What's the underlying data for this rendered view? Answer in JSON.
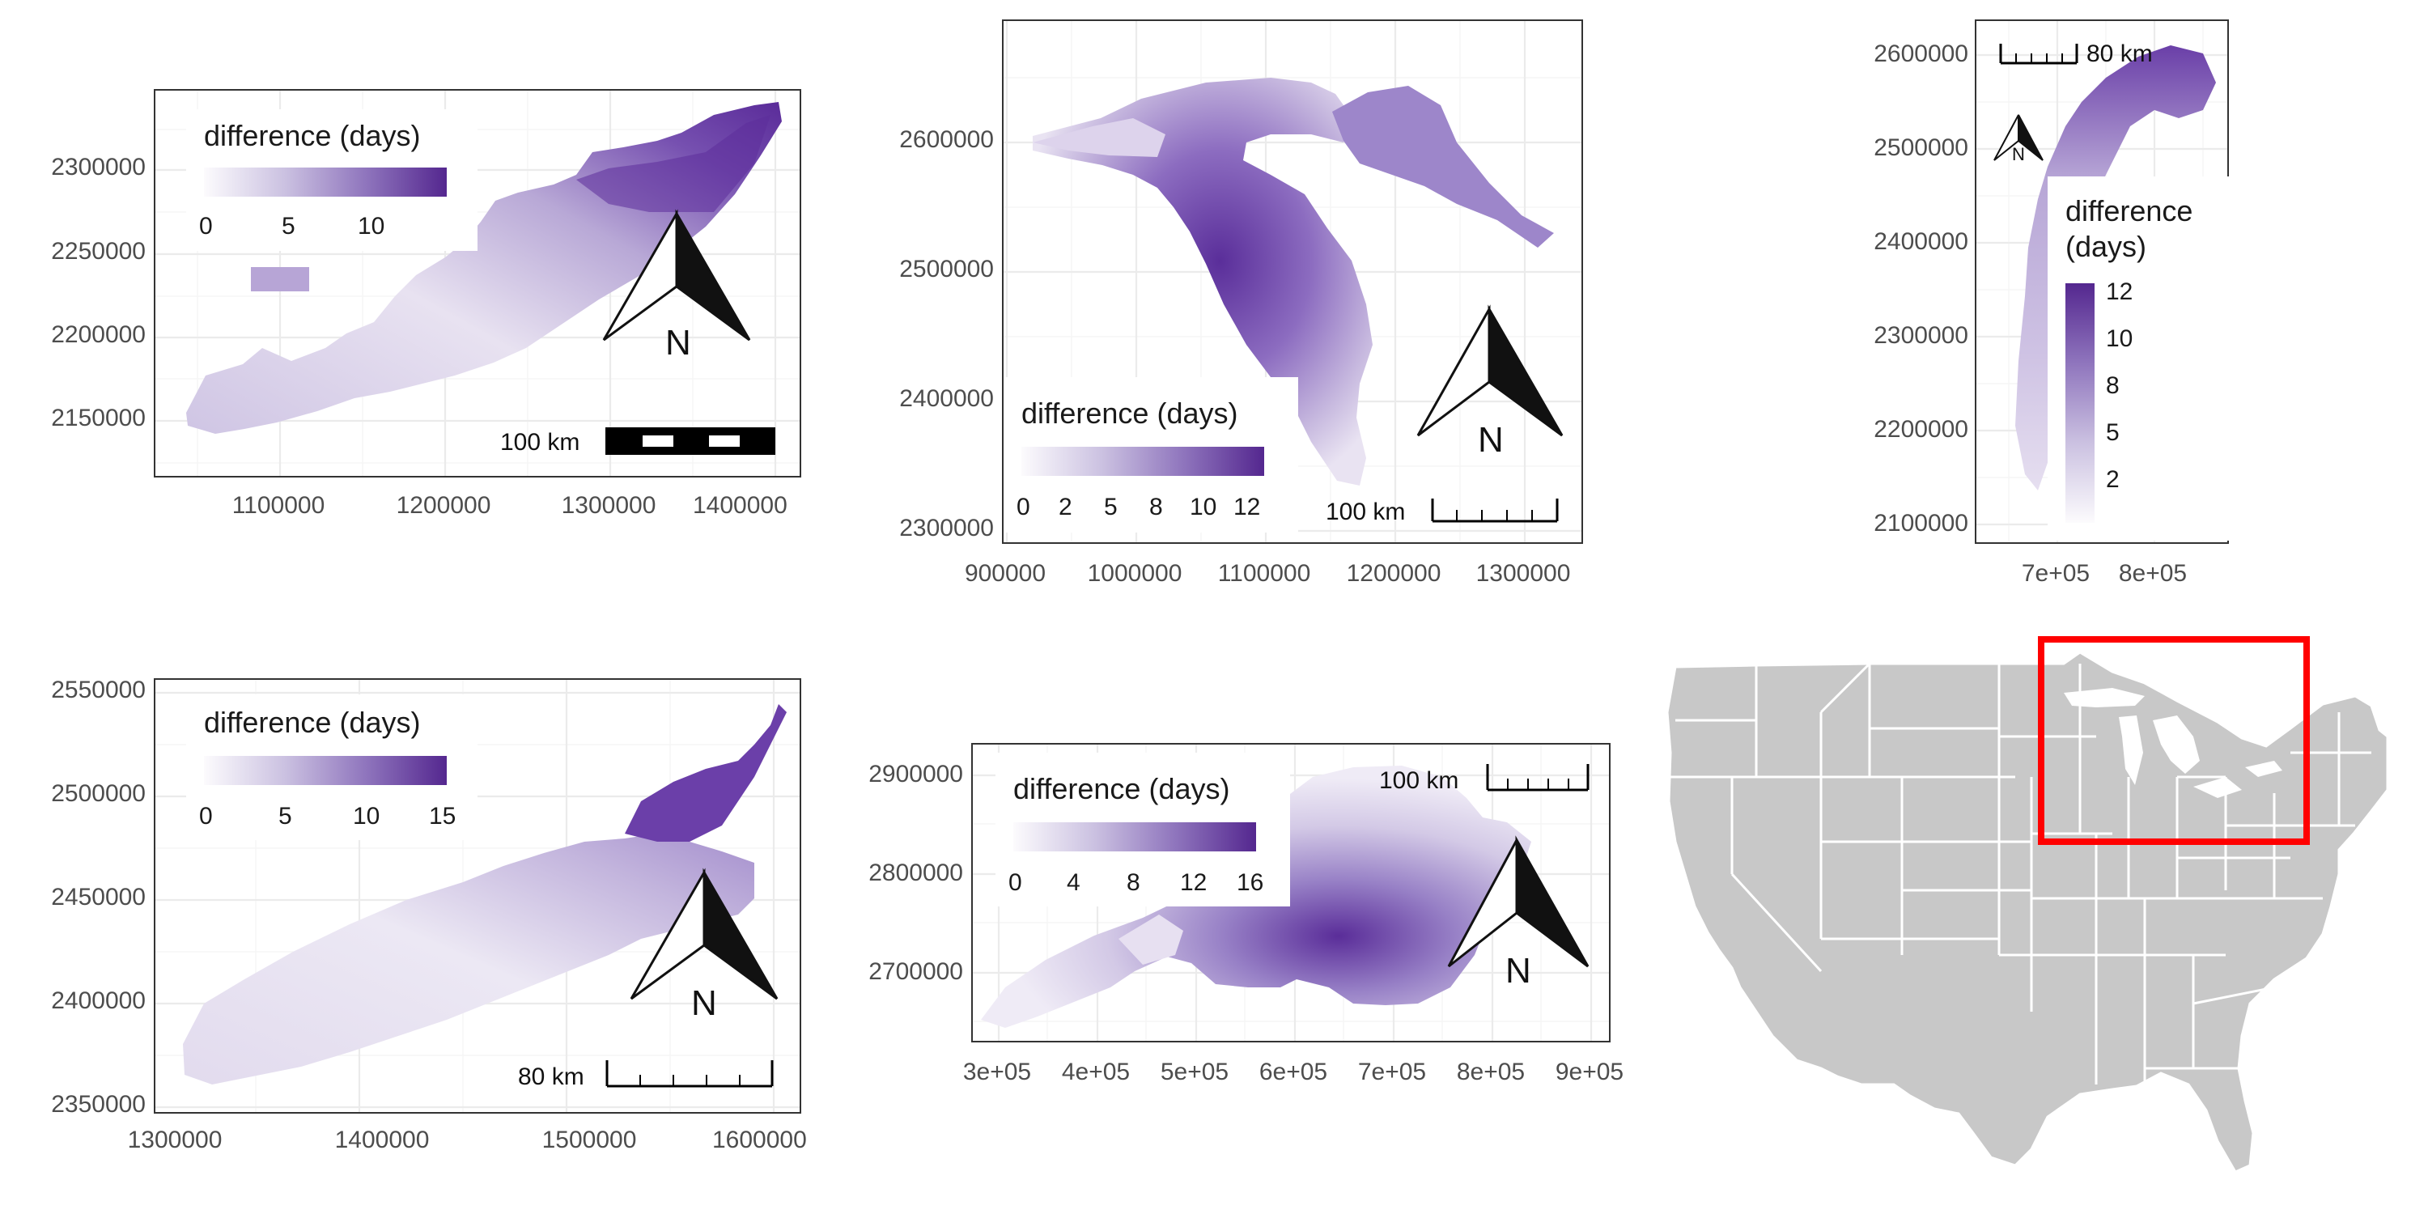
{
  "palette": {
    "low": "#fcfbfd",
    "mid": "#9e9ac8",
    "high": "#3f007d",
    "land_map": "#c8c8c8",
    "border": "#ffffff",
    "highlight_box": "#ff0000"
  },
  "panels": [
    {
      "id": "lake-erie",
      "y_ticks": [
        "2300000",
        "2250000",
        "2200000",
        "2150000"
      ],
      "x_ticks": [
        "1100000",
        "1200000",
        "1300000",
        "1400000"
      ],
      "legend": {
        "title": "difference (days)",
        "ticks": [
          "0",
          "5",
          "10"
        ]
      },
      "scale_label": "100 km",
      "north_label": "N"
    },
    {
      "id": "lake-michigan-huron",
      "y_ticks": [
        "2600000",
        "2500000",
        "2400000",
        "2300000"
      ],
      "x_ticks": [
        "900000",
        "1000000",
        "1100000",
        "1200000",
        "1300000"
      ],
      "legend": {
        "title": "difference (days)",
        "ticks": [
          "0",
          "2",
          "5",
          "8",
          "10",
          "12"
        ]
      },
      "scale_label": "100 km",
      "north_label": "N"
    },
    {
      "id": "lake-michigan",
      "y_ticks": [
        "2600000",
        "2500000",
        "2400000",
        "2300000",
        "2200000",
        "2100000"
      ],
      "x_ticks": [
        "7e+05",
        "8e+05"
      ],
      "legend": {
        "title_line1": "difference",
        "title_line2": "(days)",
        "ticks": [
          "12",
          "10",
          "8",
          "5",
          "2"
        ]
      },
      "scale_label": "80 km",
      "north_label": "N"
    },
    {
      "id": "lake-ontario",
      "y_ticks": [
        "2550000",
        "2500000",
        "2450000",
        "2400000",
        "2350000"
      ],
      "x_ticks": [
        "1300000",
        "1400000",
        "1500000",
        "1600000"
      ],
      "legend": {
        "title": "difference (days)",
        "ticks": [
          "0",
          "5",
          "10",
          "15"
        ]
      },
      "scale_label": "80 km",
      "north_label": "N"
    },
    {
      "id": "lake-superior",
      "y_ticks": [
        "2900000",
        "2800000",
        "2700000"
      ],
      "x_ticks": [
        "3e+05",
        "4e+05",
        "5e+05",
        "6e+05",
        "7e+05",
        "8e+05",
        "9e+05"
      ],
      "legend": {
        "title": "difference (days)",
        "ticks": [
          "0",
          "4",
          "8",
          "12",
          "16"
        ]
      },
      "scale_label": "100 km",
      "north_label": "N"
    }
  ]
}
